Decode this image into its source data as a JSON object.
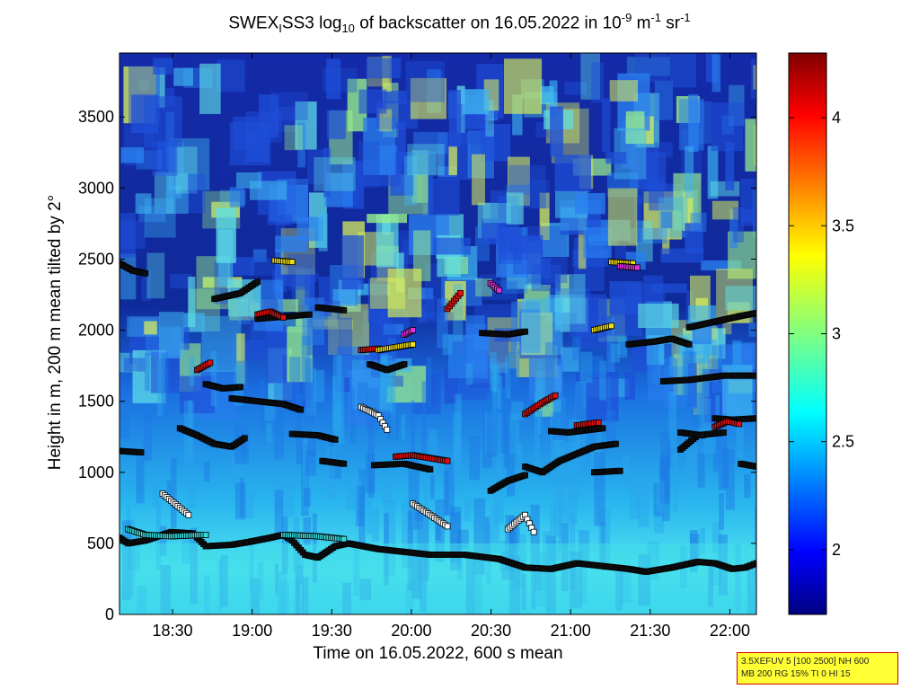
{
  "title_parts": {
    "a": "SWEX",
    "sub1": "I",
    "b": "SS3 log",
    "sub2": "10",
    "c": " of backscatter on 16.05.2022 in 10",
    "sup1": "-9",
    "d": " m",
    "sup2": "-1",
    "e": " sr",
    "sup3": "-1"
  },
  "chart_data": {
    "type": "heatmap",
    "title": "SWEX_I SS3 log10 of backscatter on 16.05.2022 in 10^-9 m^-1 sr^-1",
    "xlabel": "Time on 16.05.2022, 600 s mean",
    "ylabel": "Height in m, 200 m mean tilted by 2°",
    "x_ticks": [
      "18:30",
      "19:00",
      "19:30",
      "20:00",
      "20:30",
      "21:00",
      "21:30",
      "22:00"
    ],
    "y_ticks": [
      0,
      500,
      1000,
      1500,
      2000,
      2500,
      3000,
      3500
    ],
    "xlim": [
      "18:10",
      "22:10"
    ],
    "ylim": [
      0,
      3950
    ],
    "colorbar": {
      "ticks": [
        2,
        2.5,
        3,
        3.5,
        4
      ],
      "range": [
        1.7,
        4.3
      ],
      "colormap": "jet"
    },
    "layer_markers": {
      "colors": {
        "white": "#ffffff",
        "cyan": "#33dddd",
        "black": "#101010",
        "red": "#e01010",
        "yellow": "#f0e010",
        "magenta": "#e030e0"
      },
      "tracks": [
        {
          "color": "black",
          "points": [
            [
              0,
              540
            ],
            [
              10,
              500
            ],
            [
              30,
              520
            ],
            [
              50,
              560
            ],
            [
              60,
              580
            ],
            [
              85,
              570
            ],
            [
              100,
              480
            ],
            [
              130,
              490
            ],
            [
              150,
              510
            ],
            [
              175,
              540
            ],
            [
              190,
              560
            ],
            [
              200,
              520
            ],
            [
              215,
              420
            ],
            [
              230,
              400
            ],
            [
              250,
              480
            ],
            [
              265,
              500
            ],
            [
              300,
              460
            ],
            [
              330,
              440
            ],
            [
              360,
              420
            ],
            [
              400,
              420
            ],
            [
              440,
              390
            ],
            [
              470,
              330
            ],
            [
              500,
              320
            ],
            [
              530,
              360
            ],
            [
              560,
              340
            ],
            [
              590,
              320
            ],
            [
              610,
              300
            ],
            [
              640,
              330
            ],
            [
              670,
              370
            ],
            [
              690,
              360
            ],
            [
              710,
              320
            ],
            [
              725,
              330
            ],
            [
              738,
              360
            ]
          ]
        },
        {
          "color": "black",
          "points": [
            [
              0,
              2470
            ],
            [
              15,
              2420
            ],
            [
              30,
              2400
            ]
          ]
        },
        {
          "color": "black",
          "points": [
            [
              0,
              1150
            ],
            [
              25,
              1140
            ]
          ]
        },
        {
          "color": "black",
          "points": [
            [
              70,
              1310
            ],
            [
              90,
              1260
            ],
            [
              110,
              1200
            ],
            [
              130,
              1180
            ],
            [
              145,
              1240
            ]
          ]
        },
        {
          "color": "black",
          "points": [
            [
              130,
              1520
            ],
            [
              160,
              1500
            ],
            [
              190,
              1480
            ],
            [
              210,
              1440
            ]
          ]
        },
        {
          "color": "black",
          "points": [
            [
              100,
              1620
            ],
            [
              120,
              1590
            ],
            [
              140,
              1600
            ]
          ]
        },
        {
          "color": "black",
          "points": [
            [
              110,
              2220
            ],
            [
              140,
              2260
            ],
            [
              160,
              2340
            ]
          ]
        },
        {
          "color": "black",
          "points": [
            [
              160,
              2080
            ],
            [
              200,
              2100
            ],
            [
              220,
              2110
            ]
          ]
        },
        {
          "color": "black",
          "points": [
            [
              230,
              2160
            ],
            [
              260,
              2140
            ]
          ]
        },
        {
          "color": "black",
          "points": [
            [
              200,
              1270
            ],
            [
              230,
              1260
            ],
            [
              250,
              1230
            ]
          ]
        },
        {
          "color": "black",
          "points": [
            [
              235,
              1080
            ],
            [
              260,
              1060
            ]
          ]
        },
        {
          "color": "black",
          "points": [
            [
              295,
              1050
            ],
            [
              330,
              1060
            ],
            [
              360,
              1020
            ]
          ]
        },
        {
          "color": "black",
          "points": [
            [
              290,
              1760
            ],
            [
              310,
              1720
            ],
            [
              330,
              1760
            ]
          ]
        },
        {
          "color": "black",
          "points": [
            [
              420,
              1980
            ],
            [
              450,
              1970
            ],
            [
              470,
              1990
            ]
          ]
        },
        {
          "color": "black",
          "points": [
            [
              470,
              1040
            ],
            [
              490,
              1000
            ],
            [
              510,
              1080
            ],
            [
              530,
              1130
            ],
            [
              550,
              1180
            ],
            [
              575,
              1200
            ]
          ]
        },
        {
          "color": "black",
          "points": [
            [
              430,
              870
            ],
            [
              450,
              940
            ],
            [
              470,
              980
            ]
          ]
        },
        {
          "color": "black",
          "points": [
            [
              500,
              1290
            ],
            [
              520,
              1280
            ],
            [
              560,
              1310
            ]
          ]
        },
        {
          "color": "black",
          "points": [
            [
              550,
              1000
            ],
            [
              580,
              1010
            ]
          ]
        },
        {
          "color": "black",
          "points": [
            [
              590,
              1900
            ],
            [
              620,
              1920
            ],
            [
              640,
              1940
            ],
            [
              660,
              1900
            ]
          ]
        },
        {
          "color": "black",
          "points": [
            [
              630,
              1640
            ],
            [
              660,
              1650
            ],
            [
              700,
              1680
            ],
            [
              735,
              1680
            ]
          ]
        },
        {
          "color": "black",
          "points": [
            [
              650,
              1160
            ],
            [
              670,
              1260
            ],
            [
              700,
              1280
            ]
          ]
        },
        {
          "color": "black",
          "points": [
            [
              660,
              2020
            ],
            [
              690,
              2060
            ],
            [
              720,
              2100
            ],
            [
              738,
              2120
            ]
          ]
        },
        {
          "color": "black",
          "points": [
            [
              690,
              1380
            ],
            [
              710,
              1370
            ],
            [
              738,
              1380
            ]
          ]
        },
        {
          "color": "black",
          "points": [
            [
              720,
              1060
            ],
            [
              738,
              1040
            ]
          ]
        },
        {
          "color": "black",
          "points": [
            [
              650,
              1280
            ],
            [
              675,
              1260
            ]
          ]
        },
        {
          "color": "red",
          "points": [
            [
              160,
              2110
            ],
            [
              175,
              2130
            ],
            [
              190,
              2090
            ]
          ]
        },
        {
          "color": "red",
          "points": [
            [
              470,
              1410
            ],
            [
              490,
              1490
            ],
            [
              505,
              1540
            ]
          ]
        },
        {
          "color": "red",
          "points": [
            [
              320,
              1110
            ],
            [
              340,
              1120
            ],
            [
              360,
              1100
            ],
            [
              380,
              1080
            ]
          ]
        },
        {
          "color": "red",
          "points": [
            [
              530,
              1330
            ],
            [
              555,
              1350
            ]
          ]
        },
        {
          "color": "red",
          "points": [
            [
              690,
              1320
            ],
            [
              705,
              1360
            ],
            [
              718,
              1340
            ]
          ]
        },
        {
          "color": "red",
          "points": [
            [
              90,
              1720
            ],
            [
              105,
              1770
            ]
          ]
        },
        {
          "color": "red",
          "points": [
            [
              280,
              1860
            ],
            [
              300,
              1870
            ]
          ]
        },
        {
          "color": "red",
          "points": [
            [
              380,
              2150
            ],
            [
              395,
              2260
            ]
          ]
        },
        {
          "color": "yellow",
          "points": [
            [
              300,
              1860
            ],
            [
              340,
              1900
            ]
          ]
        },
        {
          "color": "yellow",
          "points": [
            [
              550,
              2000
            ],
            [
              570,
              2030
            ]
          ]
        },
        {
          "color": "yellow",
          "points": [
            [
              570,
              2480
            ],
            [
              595,
              2470
            ]
          ]
        },
        {
          "color": "yellow",
          "points": [
            [
              180,
              2490
            ],
            [
              200,
              2480
            ]
          ]
        },
        {
          "color": "magenta",
          "points": [
            [
              330,
              1970
            ],
            [
              340,
              2000
            ]
          ]
        },
        {
          "color": "magenta",
          "points": [
            [
              580,
              2450
            ],
            [
              600,
              2440
            ]
          ]
        },
        {
          "color": "magenta",
          "points": [
            [
              430,
              2330
            ],
            [
              440,
              2280
            ]
          ]
        },
        {
          "color": "cyan",
          "points": [
            [
              10,
              600
            ],
            [
              30,
              560
            ],
            [
              60,
              550
            ],
            [
              100,
              560
            ]
          ]
        },
        {
          "color": "cyan",
          "points": [
            [
              190,
              560
            ],
            [
              230,
              550
            ],
            [
              260,
              530
            ]
          ]
        },
        {
          "color": "white",
          "points": [
            [
              450,
              600
            ],
            [
              470,
              700
            ],
            [
              480,
              580
            ]
          ]
        },
        {
          "color": "white",
          "points": [
            [
              340,
              780
            ],
            [
              360,
              700
            ],
            [
              380,
              620
            ]
          ]
        },
        {
          "color": "white",
          "points": [
            [
              280,
              1460
            ],
            [
              300,
              1400
            ],
            [
              310,
              1300
            ]
          ]
        },
        {
          "color": "white",
          "points": [
            [
              50,
              850
            ],
            [
              80,
              700
            ]
          ]
        }
      ]
    }
  },
  "info_box": {
    "line1": "3.5XEFUV 5 [100 2500] NH 600",
    "line2": "MB 200 RG 15% TI 0 HI 15"
  }
}
